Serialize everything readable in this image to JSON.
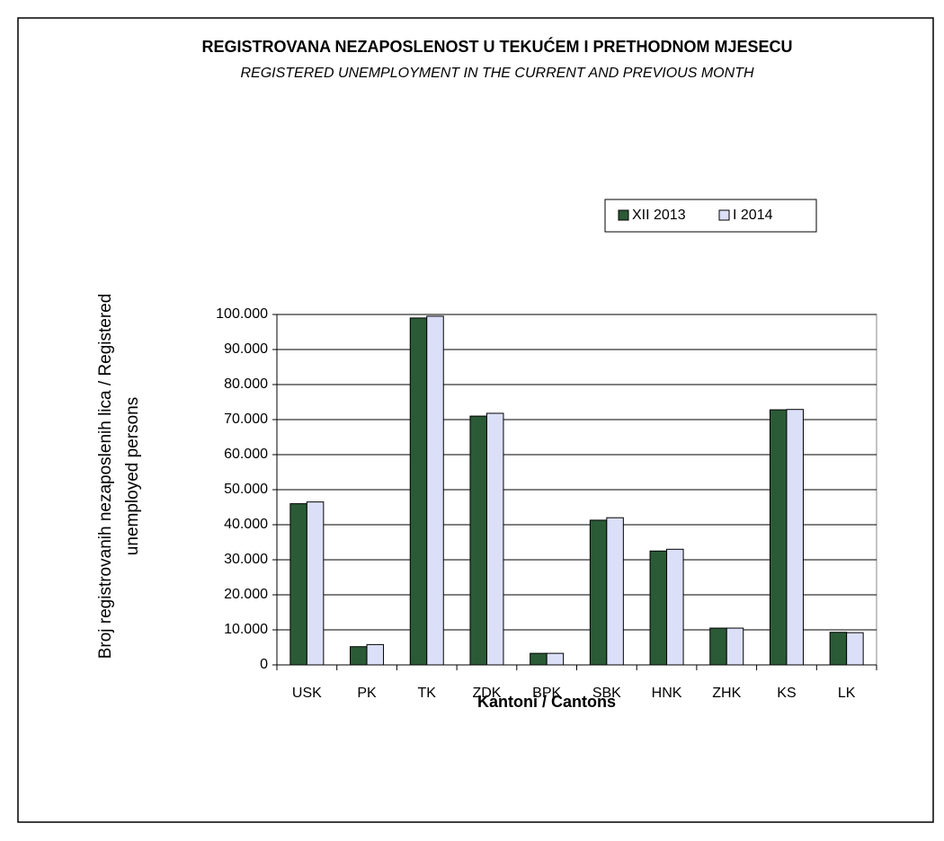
{
  "chart_data": {
    "type": "bar",
    "title": "REGISTROVANA NEZAPOSLENOST U TEKUĆEM I PRETHODNOM MJESECU",
    "subtitle": "REGISTERED UNEMPLOYMENT IN THE CURRENT AND PREVIOUS MONTH",
    "x_label": "Kantoni / Cantons",
    "y_label": [
      "Broj registrovanih nezaposlenih lica / Registered",
      "unemployed persons"
    ],
    "categories": [
      "USK",
      "PK",
      "TK",
      "ZDK",
      "BPK",
      "SBK",
      "HNK",
      "ZHK",
      "KS",
      "LK"
    ],
    "series": [
      {
        "name": "XII 2013",
        "color": "#2b5a37",
        "values": [
          46000,
          5200,
          99000,
          71000,
          3300,
          41300,
          32500,
          10500,
          72800,
          9300
        ]
      },
      {
        "name": "I 2014",
        "color": "#dcdff8",
        "values": [
          46500,
          5800,
          99500,
          71800,
          3300,
          42000,
          33000,
          10500,
          72900,
          9200
        ]
      }
    ],
    "ylim": [
      0,
      100000
    ],
    "yticks": [
      0,
      {
        "value": 10000,
        "label": "10.000"
      },
      {
        "value": 20000,
        "label": "20.000"
      },
      {
        "value": 30000,
        "label": "30.000"
      },
      {
        "value": 40000,
        "label": "40.000"
      },
      {
        "value": 50000,
        "label": "50.000"
      },
      {
        "value": 60000,
        "label": "60.000"
      },
      {
        "value": 70000,
        "label": "70.000"
      },
      {
        "value": 80000,
        "label": "80.000"
      },
      {
        "value": 90000,
        "label": "90.000"
      },
      {
        "value": 100000,
        "label": "100.000"
      }
    ],
    "grid": true,
    "legend": "top-right"
  }
}
